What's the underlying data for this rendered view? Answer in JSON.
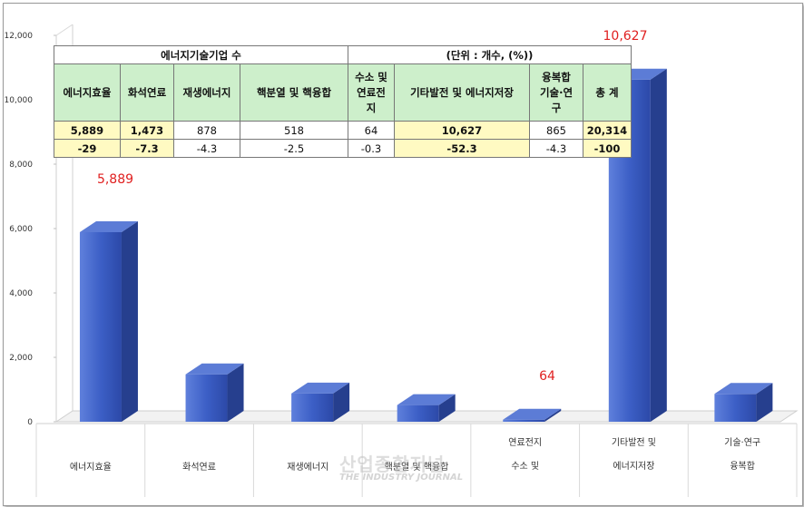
{
  "chart_data": {
    "type": "bar",
    "categories": [
      "에너지효율",
      "화석연료",
      "재생에너지",
      "핵분열 및 핵융합",
      "수소 및 연료전지",
      "기타발전 및 에너지저장",
      "융복합 기술·연구"
    ],
    "category_lines": [
      [
        "에너지효율"
      ],
      [
        "화석연료"
      ],
      [
        "재생에너지"
      ],
      [
        "핵분열 및 핵융합"
      ],
      [
        "연료전지",
        "수소 및"
      ],
      [
        "기타발전 및",
        "에너지저장"
      ],
      [
        "기술·연구",
        "융복합"
      ]
    ],
    "values": [
      5889,
      1473,
      878,
      518,
      64,
      10627,
      865
    ],
    "data_labels": [
      {
        "index": 0,
        "text": "5,889"
      },
      {
        "index": 4,
        "text": "64"
      },
      {
        "index": 5,
        "text": "10,627"
      }
    ],
    "y_ticks": [
      "0",
      "2,000",
      "4,000",
      "6,000",
      "8,000",
      "10,000",
      "12,000"
    ],
    "ylim": [
      0,
      12000
    ],
    "grid": false,
    "bar_color": "#3f5fc0",
    "label_color": "#e02020"
  },
  "table": {
    "title": "에너지기술기업 수",
    "unit": "(단위 : 개수, (%))",
    "headers": [
      [
        "에너지효율"
      ],
      [
        "화석연료"
      ],
      [
        "재생에너지"
      ],
      [
        "핵분열 및 핵융합"
      ],
      [
        "수소 및",
        "연료전",
        "지"
      ],
      [
        "기타발전 및 에너지저장"
      ],
      [
        "융복합",
        "기술·연",
        "구"
      ],
      [
        "총 계"
      ]
    ],
    "counts": [
      "5,889",
      "1,473",
      "878",
      "518",
      "64",
      "10,627",
      "865",
      "20,314"
    ],
    "changes": [
      "-29",
      "-7.3",
      "-4.3",
      "-2.5",
      "-0.3",
      "-52.3",
      "-4.3",
      "-100"
    ],
    "highlight_columns": [
      0,
      1,
      5,
      7
    ],
    "header_color": "#cdefcb",
    "highlight_color": "#fffac2"
  },
  "watermark": {
    "main": "산업종합저널",
    "sub": "THE INDUSTRY JOURNAL"
  }
}
